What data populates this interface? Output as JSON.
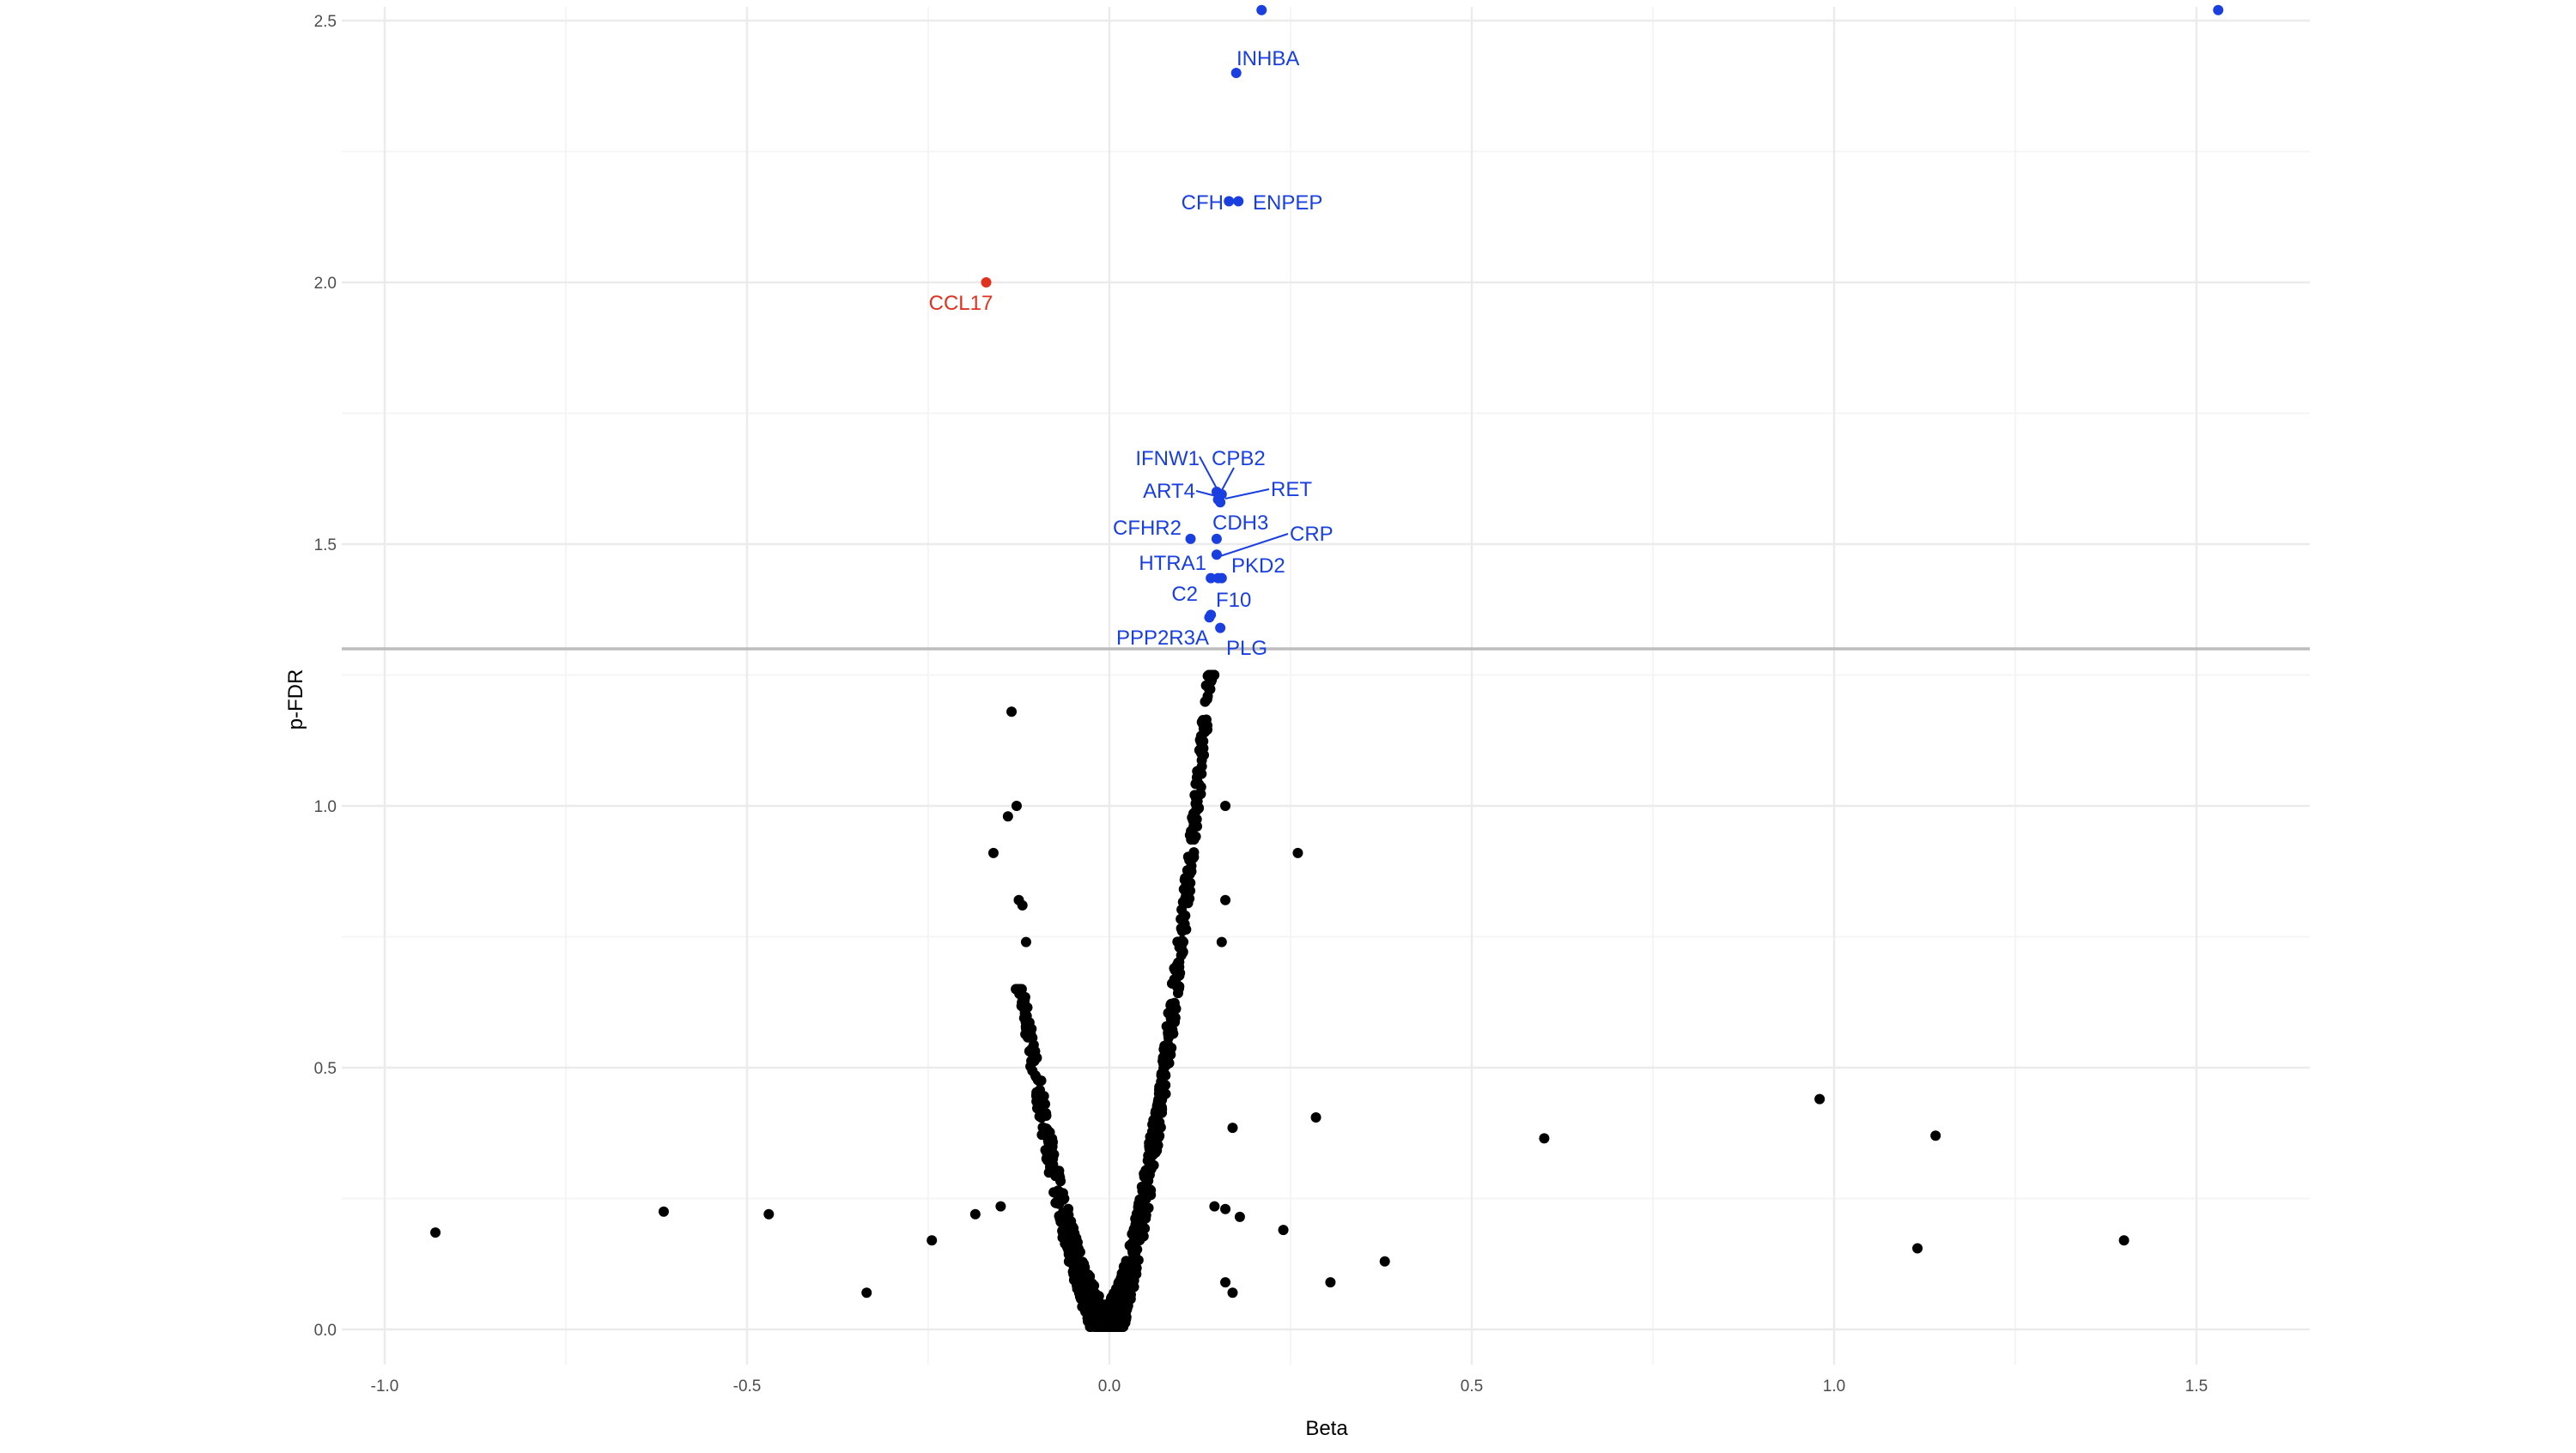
{
  "chart_data": {
    "type": "scatter",
    "xlabel": "Beta",
    "ylabel": "p-FDR",
    "xlim": [
      -1.1,
      1.65
    ],
    "ylim": [
      -0.05,
      2.53
    ],
    "x_ticks": [
      -1.0,
      -0.5,
      0.0,
      0.5,
      1.0,
      1.5
    ],
    "x_tick_labels": [
      "-1.0",
      "-0.5",
      "0.0",
      "0.5",
      "1.0",
      "1.5"
    ],
    "y_ticks": [
      0.0,
      0.5,
      1.0,
      1.5,
      2.0,
      2.5
    ],
    "y_tick_labels": [
      "0.0",
      "0.5",
      "1.0",
      "1.5",
      "2.0",
      "2.5"
    ],
    "grid": true,
    "threshold_line_y": 1.3,
    "colors": {
      "not_significant": "#000000",
      "up": "#1a3fe0",
      "down": "#e0301e",
      "threshold": "#bdbdbd",
      "grid_major": "#ebebeb",
      "grid_minor": "#f5f5f5"
    },
    "labeled_points": [
      {
        "label": "INHBA",
        "x": 0.175,
        "y": 2.4,
        "group": "up"
      },
      {
        "label": "CFH",
        "x": 0.165,
        "y": 2.155,
        "group": "up"
      },
      {
        "label": "ENPEP",
        "x": 0.178,
        "y": 2.155,
        "group": "up"
      },
      {
        "label": "CCL17",
        "x": -0.17,
        "y": 2.0,
        "group": "down"
      },
      {
        "label": "IFNW1",
        "x": 0.148,
        "y": 1.6,
        "group": "up"
      },
      {
        "label": "CPB2",
        "x": 0.155,
        "y": 1.595,
        "group": "up"
      },
      {
        "label": "ART4",
        "x": 0.15,
        "y": 1.585,
        "group": "up"
      },
      {
        "label": "RET",
        "x": 0.153,
        "y": 1.58,
        "group": "up"
      },
      {
        "label": "CFHR2",
        "x": 0.112,
        "y": 1.51,
        "group": "up"
      },
      {
        "label": "CDH3",
        "x": 0.148,
        "y": 1.51,
        "group": "up"
      },
      {
        "label": "CRP",
        "x": 0.148,
        "y": 1.48,
        "group": "up"
      },
      {
        "label": "HTRA1",
        "x": 0.14,
        "y": 1.435,
        "group": "up"
      },
      {
        "label": "PKD2",
        "x": 0.155,
        "y": 1.435,
        "group": "up"
      },
      {
        "label": "C2",
        "x": 0.138,
        "y": 1.36,
        "group": "up"
      },
      {
        "label": "F10",
        "x": 0.15,
        "y": 1.435,
        "group": "up"
      },
      {
        "label": "PPP2R3A",
        "x": 0.14,
        "y": 1.365,
        "group": "up"
      },
      {
        "label": "PLG",
        "x": 0.153,
        "y": 1.34,
        "group": "up"
      }
    ],
    "unlabeled_significant_points": [
      {
        "x": 0.21,
        "y": 2.52,
        "group": "up"
      },
      {
        "x": 1.53,
        "y": 2.52,
        "group": "up"
      }
    ],
    "outlier_points": [
      {
        "x": -0.93,
        "y": 0.185
      },
      {
        "x": -0.615,
        "y": 0.225
      },
      {
        "x": -0.47,
        "y": 0.22
      },
      {
        "x": -0.335,
        "y": 0.07
      },
      {
        "x": -0.245,
        "y": 0.17
      },
      {
        "x": -0.15,
        "y": 0.235
      },
      {
        "x": -0.135,
        "y": 1.18
      },
      {
        "x": -0.14,
        "y": 0.98
      },
      {
        "x": -0.128,
        "y": 1.0
      },
      {
        "x": -0.16,
        "y": 0.91
      },
      {
        "x": -0.125,
        "y": 0.82
      },
      {
        "x": -0.12,
        "y": 0.81
      },
      {
        "x": -0.115,
        "y": 0.74
      },
      {
        "x": 0.26,
        "y": 0.91
      },
      {
        "x": 0.16,
        "y": 1.0
      },
      {
        "x": 0.16,
        "y": 0.82
      },
      {
        "x": 0.155,
        "y": 0.74
      },
      {
        "x": 0.285,
        "y": 0.405
      },
      {
        "x": 0.6,
        "y": 0.365
      },
      {
        "x": 0.98,
        "y": 0.44
      },
      {
        "x": 1.14,
        "y": 0.37
      },
      {
        "x": 1.4,
        "y": 0.17
      },
      {
        "x": 1.115,
        "y": 0.155
      },
      {
        "x": 0.38,
        "y": 0.13
      },
      {
        "x": 0.305,
        "y": 0.09
      },
      {
        "x": 0.24,
        "y": 0.19
      },
      {
        "x": 0.18,
        "y": 0.215
      },
      {
        "x": 0.17,
        "y": 0.385
      },
      {
        "x": 0.145,
        "y": 0.235
      },
      {
        "x": 0.16,
        "y": 0.23
      },
      {
        "x": 0.16,
        "y": 0.09
      },
      {
        "x": 0.17,
        "y": 0.07
      },
      {
        "x": -0.185,
        "y": 0.22
      }
    ],
    "bulk_points": {
      "description_free": true,
      "left_arm_x_range": [
        -0.13,
        0.0
      ],
      "right_arm_x_range": [
        0.0,
        0.145
      ],
      "y_range": [
        0.0,
        1.25
      ],
      "count_left": 420,
      "count_right": 650
    }
  }
}
